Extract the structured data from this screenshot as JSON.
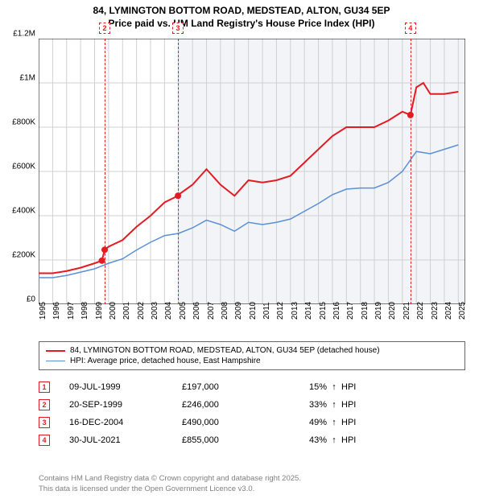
{
  "title": {
    "line1": "84, LYMINGTON BOTTOM ROAD, MEDSTEAD, ALTON, GU34 5EP",
    "line2": "Price paid vs. HM Land Registry's House Price Index (HPI)"
  },
  "chart": {
    "type": "line",
    "background_color": "#ffffff",
    "shaded_region_color": "#f2f4f7",
    "grid_color": "#d0d0d0",
    "axis_color": "#000000",
    "x_range": [
      1995,
      2025.5
    ],
    "y_range": [
      0,
      1200000
    ],
    "y_ticks": [
      {
        "value": 0,
        "label": "£0"
      },
      {
        "value": 200000,
        "label": "£200K"
      },
      {
        "value": 400000,
        "label": "£400K"
      },
      {
        "value": 600000,
        "label": "£600K"
      },
      {
        "value": 800000,
        "label": "£800K"
      },
      {
        "value": 1000000,
        "label": "£1M"
      },
      {
        "value": 1200000,
        "label": "£1.2M"
      }
    ],
    "x_ticks": [
      1995,
      1996,
      1997,
      1998,
      1999,
      2000,
      2001,
      2002,
      2003,
      2004,
      2005,
      2006,
      2007,
      2008,
      2009,
      2010,
      2011,
      2012,
      2013,
      2014,
      2015,
      2016,
      2017,
      2018,
      2019,
      2020,
      2021,
      2022,
      2023,
      2024,
      2025
    ],
    "shaded_start": 2005,
    "series": [
      {
        "name": "property",
        "label": "84, LYMINGTON BOTTOM ROAD, MEDSTEAD, ALTON, GU34 5EP (detached house)",
        "color": "#e31b23",
        "line_width": 2,
        "data": [
          [
            1995,
            140000
          ],
          [
            1996,
            140000
          ],
          [
            1997,
            150000
          ],
          [
            1998,
            165000
          ],
          [
            1999,
            185000
          ],
          [
            1999.52,
            197000
          ],
          [
            1999.72,
            246000
          ],
          [
            2000,
            260000
          ],
          [
            2001,
            290000
          ],
          [
            2002,
            350000
          ],
          [
            2003,
            400000
          ],
          [
            2004,
            460000
          ],
          [
            2004.96,
            490000
          ],
          [
            2005,
            495000
          ],
          [
            2006,
            540000
          ],
          [
            2007,
            610000
          ],
          [
            2008,
            540000
          ],
          [
            2009,
            490000
          ],
          [
            2010,
            560000
          ],
          [
            2011,
            550000
          ],
          [
            2012,
            560000
          ],
          [
            2013,
            580000
          ],
          [
            2014,
            640000
          ],
          [
            2015,
            700000
          ],
          [
            2016,
            760000
          ],
          [
            2017,
            800000
          ],
          [
            2018,
            800000
          ],
          [
            2019,
            800000
          ],
          [
            2020,
            830000
          ],
          [
            2021,
            870000
          ],
          [
            2021.58,
            855000
          ],
          [
            2022,
            980000
          ],
          [
            2022.5,
            1000000
          ],
          [
            2023,
            950000
          ],
          [
            2024,
            950000
          ],
          [
            2025,
            960000
          ]
        ]
      },
      {
        "name": "hpi",
        "label": "HPI: Average price, detached house, East Hampshire",
        "color": "#5b8fd6",
        "line_width": 1.5,
        "data": [
          [
            1995,
            120000
          ],
          [
            1996,
            120000
          ],
          [
            1997,
            130000
          ],
          [
            1998,
            145000
          ],
          [
            1999,
            160000
          ],
          [
            2000,
            185000
          ],
          [
            2001,
            205000
          ],
          [
            2002,
            245000
          ],
          [
            2003,
            280000
          ],
          [
            2004,
            310000
          ],
          [
            2005,
            320000
          ],
          [
            2006,
            345000
          ],
          [
            2007,
            380000
          ],
          [
            2008,
            360000
          ],
          [
            2009,
            330000
          ],
          [
            2010,
            370000
          ],
          [
            2011,
            360000
          ],
          [
            2012,
            370000
          ],
          [
            2013,
            385000
          ],
          [
            2014,
            420000
          ],
          [
            2015,
            455000
          ],
          [
            2016,
            495000
          ],
          [
            2017,
            520000
          ],
          [
            2018,
            525000
          ],
          [
            2019,
            525000
          ],
          [
            2020,
            550000
          ],
          [
            2021,
            600000
          ],
          [
            2022,
            690000
          ],
          [
            2023,
            680000
          ],
          [
            2024,
            700000
          ],
          [
            2025,
            720000
          ]
        ]
      }
    ],
    "sale_markers": [
      {
        "num": "1",
        "x": 1999.52,
        "y": 197000,
        "color": "#e31b23"
      },
      {
        "num": "2",
        "x": 1999.72,
        "y": 246000,
        "color": "#e31b23"
      },
      {
        "num": "3",
        "x": 2004.96,
        "y": 490000,
        "color": "#e31b23"
      },
      {
        "num": "4",
        "x": 2021.58,
        "y": 855000,
        "color": "#e31b23"
      }
    ],
    "callouts": [
      {
        "num": "2",
        "x": 1999.72,
        "color": "#e31b23"
      },
      {
        "num": "3",
        "x": 2004.96,
        "color": "#e31b23"
      },
      {
        "num": "4",
        "x": 2021.58,
        "color": "#e31b23"
      }
    ]
  },
  "legend": [
    {
      "color": "#e31b23",
      "width": 2,
      "text": "84, LYMINGTON BOTTOM ROAD, MEDSTEAD, ALTON, GU34 5EP (detached house)"
    },
    {
      "color": "#5b8fd6",
      "width": 1.5,
      "text": "HPI: Average price, detached house, East Hampshire"
    }
  ],
  "table": [
    {
      "num": "1",
      "color": "#e31b23",
      "date": "09-JUL-1999",
      "price": "£197,000",
      "pct": "15%",
      "arrow": "↑",
      "suffix": "HPI"
    },
    {
      "num": "2",
      "color": "#e31b23",
      "date": "20-SEP-1999",
      "price": "£246,000",
      "pct": "33%",
      "arrow": "↑",
      "suffix": "HPI"
    },
    {
      "num": "3",
      "color": "#e31b23",
      "date": "16-DEC-2004",
      "price": "£490,000",
      "pct": "49%",
      "arrow": "↑",
      "suffix": "HPI"
    },
    {
      "num": "4",
      "color": "#e31b23",
      "date": "30-JUL-2021",
      "price": "£855,000",
      "pct": "43%",
      "arrow": "↑",
      "suffix": "HPI"
    }
  ],
  "footer": {
    "line1": "Contains HM Land Registry data © Crown copyright and database right 2025.",
    "line2": "This data is licensed under the Open Government Licence v3.0."
  }
}
